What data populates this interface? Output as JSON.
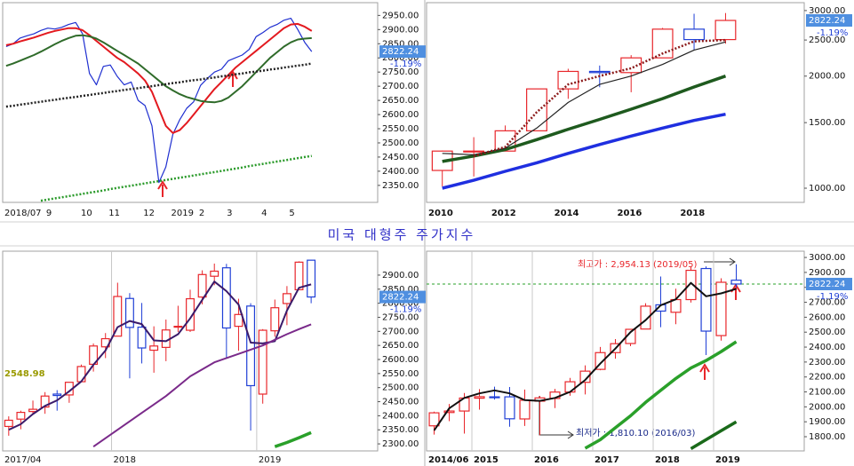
{
  "title": "미국 대형주 주가지수",
  "chart_data": [
    {
      "type": "line",
      "ylim": [
        2290,
        2995
      ],
      "yticks": [
        {
          "value": 2350,
          "label": "2350.00"
        },
        {
          "value": 2400,
          "label": "2400.00"
        },
        {
          "value": 2450,
          "label": "2450.00"
        },
        {
          "value": 2500,
          "label": "2500.00"
        },
        {
          "value": 2550,
          "label": "2550.00"
        },
        {
          "value": 2600,
          "label": "2600.00"
        },
        {
          "value": 2650,
          "label": "2650.00"
        },
        {
          "value": 2700,
          "label": "2700.00"
        },
        {
          "value": 2750,
          "label": "2750.00"
        },
        {
          "value": 2800,
          "label": "2800.00"
        },
        {
          "value": 2850,
          "label": "2850.00"
        },
        {
          "value": 2900,
          "label": "2900.00"
        },
        {
          "value": 2950,
          "label": "2950.00"
        }
      ],
      "categories": [
        "2018/07",
        null,
        null,
        null,
        null,
        null,
        "9",
        null,
        null,
        null,
        null,
        "10",
        null,
        null,
        null,
        "11",
        null,
        null,
        null,
        null,
        "12",
        null,
        null,
        null,
        "2019",
        null,
        null,
        null,
        "2",
        null,
        null,
        null,
        "3",
        null,
        null,
        null,
        null,
        "4",
        null,
        null,
        null,
        "5",
        null,
        null,
        null
      ],
      "grid": false,
      "series": [
        {
          "color": "#1f2fd0",
          "style": "thin",
          "values": [
            2840,
            2850,
            2870,
            2878,
            2885,
            2897,
            2905,
            2902,
            2908,
            2918,
            2925,
            2885,
            2745,
            2705,
            2770,
            2775,
            2735,
            2705,
            2715,
            2650,
            2632,
            2560,
            2360,
            2415,
            2530,
            2582,
            2622,
            2645,
            2703,
            2728,
            2750,
            2760,
            2790,
            2800,
            2810,
            2830,
            2875,
            2890,
            2908,
            2918,
            2933,
            2940,
            2900,
            2855,
            2822.24
          ]
        },
        {
          "color": "#e3191f",
          "style": "medium",
          "values": [
            2845,
            2850,
            2858,
            2865,
            2872,
            2880,
            2888,
            2895,
            2900,
            2905,
            2905,
            2898,
            2880,
            2860,
            2840,
            2820,
            2800,
            2785,
            2765,
            2745,
            2720,
            2680,
            2620,
            2560,
            2535,
            2545,
            2570,
            2600,
            2630,
            2660,
            2690,
            2715,
            2740,
            2765,
            2785,
            2805,
            2825,
            2845,
            2865,
            2885,
            2905,
            2918,
            2920,
            2910,
            2895
          ]
        },
        {
          "color": "#2f6b2a",
          "style": "medium",
          "values": [
            2772,
            2780,
            2790,
            2800,
            2810,
            2822,
            2835,
            2848,
            2860,
            2870,
            2878,
            2880,
            2876,
            2868,
            2855,
            2840,
            2825,
            2810,
            2795,
            2780,
            2760,
            2740,
            2720,
            2700,
            2685,
            2672,
            2662,
            2655,
            2648,
            2645,
            2643,
            2648,
            2660,
            2680,
            2700,
            2725,
            2750,
            2775,
            2800,
            2820,
            2840,
            2855,
            2865,
            2868,
            2870
          ]
        },
        {
          "color": "#222222",
          "style": "dotted",
          "values": [
            2628,
            2631,
            2635,
            2638,
            2642,
            2645,
            2649,
            2652,
            2656,
            2659,
            2662,
            2666,
            2669,
            2673,
            2676,
            2680,
            2683,
            2687,
            2690,
            2693,
            2697,
            2700,
            2704,
            2707,
            2711,
            2714,
            2718,
            2721,
            2724,
            2728,
            2731,
            2735,
            2738,
            2742,
            2745,
            2749,
            2752,
            2755,
            2759,
            2762,
            2766,
            2769,
            2773,
            2776,
            2780
          ]
        },
        {
          "color": "#2a9a2a",
          "style": "dotted",
          "values": [
            null,
            null,
            null,
            null,
            null,
            2296,
            2300,
            2304,
            2308,
            2312,
            2316,
            2320,
            2324,
            2328,
            2332,
            2337,
            2341,
            2345,
            2349,
            2353,
            2357,
            2361,
            2365,
            2369,
            2373,
            2377,
            2381,
            2385,
            2389,
            2393,
            2397,
            2401,
            2405,
            2409,
            2413,
            2418,
            2422,
            2426,
            2430,
            2434,
            2438,
            2442,
            2446,
            2450,
            2454
          ]
        }
      ],
      "last_price": 2822.24,
      "change_label": "-1.19%"
    },
    {
      "type": "candlestick",
      "log_scale": true,
      "ylim": [
        916,
        3150
      ],
      "yticks": [
        {
          "value": 1000,
          "label": "1000.00"
        },
        {
          "value": 1500,
          "label": "1500.00"
        },
        {
          "value": 2000,
          "label": "2000.00"
        },
        {
          "value": 2500,
          "label": "2500.00"
        },
        {
          "value": 3000,
          "label": "3000.00"
        }
      ],
      "categories": [
        "2010",
        null,
        "2012",
        null,
        "2014",
        null,
        "2016",
        null,
        "2018",
        null
      ],
      "grid": false,
      "up_color": "#e8262b",
      "down_color": "#1f3fd6",
      "candles": {
        "open": [
          1116,
          1258,
          1258,
          1426,
          1848,
          2059,
          2044,
          2239,
          2674,
          2507
        ],
        "high": [
          1262,
          1371,
          1474,
          1849,
          2093,
          2135,
          2277,
          2695,
          2941,
          2954.13
        ],
        "low": [
          1011,
          1075,
          1259,
          1426,
          1738,
          1867,
          1810.1,
          2239,
          2347,
          2444
        ],
        "close": [
          1258,
          1258,
          1426,
          1848,
          2059,
          2044,
          2239,
          2674,
          2507,
          2822.24
        ]
      },
      "series": [
        {
          "color": "#1e5a1e",
          "style": "thick",
          "values": [
            1180,
            1220,
            1270,
            1350,
            1440,
            1530,
            1630,
            1740,
            1870,
            2000
          ]
        },
        {
          "color": "#1f2fe0",
          "style": "thick",
          "values": [
            1000,
            1050,
            1110,
            1170,
            1240,
            1310,
            1380,
            1450,
            1520,
            1580
          ]
        },
        {
          "color": "#222222",
          "style": "thin",
          "values": [
            1240,
            1230,
            1280,
            1450,
            1700,
            1900,
            2000,
            2150,
            2350,
            2470
          ]
        },
        {
          "color": "#8b1a1a",
          "style": "dotted",
          "values": [
            null,
            1220,
            1290,
            1600,
            1900,
            2000,
            2100,
            2300,
            2480,
            2500
          ]
        }
      ],
      "last_price": 2822.24,
      "change_label": "-1.19%"
    },
    {
      "type": "candlestick",
      "ylim": [
        2275,
        2985
      ],
      "yticks": [
        {
          "value": 2300,
          "label": "2300.00"
        },
        {
          "value": 2350,
          "label": "2350.00"
        },
        {
          "value": 2400,
          "label": "2400.00"
        },
        {
          "value": 2450,
          "label": "2450.00"
        },
        {
          "value": 2500,
          "label": "2500.00"
        },
        {
          "value": 2550,
          "label": "2550.00"
        },
        {
          "value": 2600,
          "label": "2600.00"
        },
        {
          "value": 2650,
          "label": "2650.00"
        },
        {
          "value": 2700,
          "label": "2700.00"
        },
        {
          "value": 2750,
          "label": "2750.00"
        },
        {
          "value": 2800,
          "label": "2800.00"
        },
        {
          "value": 2850,
          "label": "2850.00"
        },
        {
          "value": 2900,
          "label": "2900.00"
        }
      ],
      "categories": [
        "2017/04",
        null,
        null,
        null,
        null,
        null,
        null,
        null,
        null,
        "2018",
        null,
        null,
        null,
        null,
        null,
        null,
        null,
        null,
        null,
        null,
        null,
        "2019",
        null,
        null,
        null,
        null
      ],
      "grid": true,
      "up_color": "#e8262b",
      "down_color": "#1f3fd6",
      "candles": {
        "open": [
          2362,
          2388,
          2415,
          2431,
          2477,
          2474,
          2521,
          2583,
          2645,
          2683,
          2817,
          2715,
          2633,
          2643,
          2718,
          2704,
          2822,
          2896,
          2926,
          2718,
          2790,
          2477,
          2702,
          2799,
          2848,
          2953
        ],
        "high": [
          2398,
          2418,
          2454,
          2484,
          2491,
          2519,
          2582,
          2657,
          2694,
          2873,
          2836,
          2801,
          2718,
          2742,
          2791,
          2848,
          2917,
          2941,
          2940,
          2816,
          2800,
          2708,
          2813,
          2861,
          2949,
          2954
        ],
        "low": [
          2329,
          2352,
          2405,
          2407,
          2418,
          2446,
          2520,
          2557,
          2605,
          2682,
          2533,
          2586,
          2553,
          2594,
          2698,
          2698,
          2796,
          2864,
          2603,
          2631,
          2347,
          2443,
          2681,
          2722,
          2848,
          2800
        ],
        "close": [
          2384,
          2412,
          2423,
          2470,
          2472,
          2519,
          2575,
          2648,
          2674,
          2824,
          2714,
          2641,
          2648,
          2705,
          2718,
          2816,
          2902,
          2914,
          2712,
          2760,
          2507,
          2704,
          2784,
          2834,
          2946,
          2822.24
        ]
      },
      "series": [
        {
          "color": "#3a1a6a",
          "style": "medium",
          "values": [
            2350,
            2370,
            2406,
            2435,
            2455,
            2487,
            2522,
            2581,
            2632,
            2715,
            2737,
            2726,
            2668,
            2665,
            2690,
            2746,
            2812,
            2877,
            2843,
            2795,
            2660,
            2657,
            2665,
            2774,
            2855,
            2867
          ]
        },
        {
          "color": "#7a2a8a",
          "style": "medium",
          "values": [
            null,
            null,
            null,
            null,
            null,
            null,
            null,
            2290,
            2320,
            2350,
            2380,
            2410,
            2440,
            2470,
            2505,
            2540,
            2565,
            2590,
            2605,
            2620,
            2635,
            2650,
            2670,
            2690,
            2708,
            2725
          ]
        },
        {
          "color": "#2aa02a",
          "style": "thick",
          "values": [
            null,
            null,
            null,
            null,
            null,
            null,
            null,
            null,
            null,
            null,
            null,
            null,
            null,
            null,
            null,
            null,
            null,
            null,
            null,
            null,
            null,
            null,
            2290,
            2305,
            2322,
            2340
          ]
        }
      ],
      "level_label": 2548.98,
      "last_price": 2822.24,
      "change_label": "-1.19%"
    },
    {
      "type": "candlestick",
      "ylim": [
        1705,
        3042
      ],
      "yticks": [
        {
          "value": 1800,
          "label": "1800.00"
        },
        {
          "value": 1900,
          "label": "1900.00"
        },
        {
          "value": 2000,
          "label": "2000.00"
        },
        {
          "value": 2100,
          "label": "2100.00"
        },
        {
          "value": 2200,
          "label": "2200.00"
        },
        {
          "value": 2300,
          "label": "2300.00"
        },
        {
          "value": 2400,
          "label": "2400.00"
        },
        {
          "value": 2500,
          "label": "2500.00"
        },
        {
          "value": 2600,
          "label": "2600.00"
        },
        {
          "value": 2700,
          "label": "2700.00"
        },
        {
          "value": 2800,
          "label": "2800.00"
        },
        {
          "value": 2900,
          "label": "2900.00"
        },
        {
          "value": 3000,
          "label": "3000.00"
        }
      ],
      "categories": [
        "2014/06",
        null,
        null,
        "2015",
        null,
        null,
        null,
        "2016",
        null,
        null,
        null,
        "2017",
        null,
        null,
        null,
        "2018",
        null,
        null,
        null,
        "2019",
        null
      ],
      "grid": true,
      "price_line": true,
      "up_color": "#e8262b",
      "down_color": "#1f3fd6",
      "candles": {
        "open": [
          1873,
          1962,
          1972,
          2058,
          2067,
          2067,
          1919,
          2038,
          2056,
          2099,
          2164,
          2251,
          2363,
          2424,
          2521,
          2683,
          2633,
          2718,
          2926,
          2477,
          2848
        ],
        "high": [
          1968,
          2019,
          2093,
          2119,
          2135,
          2133,
          2116,
          2073,
          2120,
          2194,
          2278,
          2401,
          2454,
          2519,
          2694,
          2873,
          2791,
          2941,
          2940,
          2861,
          2954.13
        ],
        "low": [
          1814,
          1904,
          1821,
          1981,
          2049,
          1867,
          1872,
          1810.1,
          1992,
          2074,
          2083,
          2245,
          2322,
          2406,
          2520,
          2533,
          2553,
          2698,
          2347,
          2443,
          2800
        ],
        "close": [
          1960,
          1972,
          2059,
          2068,
          2063,
          1920,
          2044,
          2060,
          2099,
          2168,
          2239,
          2363,
          2423,
          2519,
          2674,
          2641,
          2718,
          2914,
          2507,
          2834,
          2822.24
        ]
      },
      "series": [
        {
          "color": "#111111",
          "style": "medium",
          "values": [
            1842,
            1990,
            2060,
            2090,
            2110,
            2090,
            2045,
            2040,
            2060,
            2100,
            2180,
            2290,
            2390,
            2500,
            2580,
            2680,
            2720,
            2830,
            2740,
            2760,
            2790
          ]
        },
        {
          "color": "#2aa02a",
          "style": "thick",
          "values": [
            null,
            null,
            null,
            null,
            null,
            null,
            null,
            null,
            null,
            null,
            1723,
            1780,
            1860,
            1940,
            2030,
            2110,
            2190,
            2260,
            2310,
            2370,
            2436
          ]
        },
        {
          "color": "#1a6a1a",
          "style": "thick",
          "values": [
            null,
            null,
            null,
            null,
            null,
            null,
            null,
            null,
            null,
            null,
            null,
            null,
            null,
            null,
            null,
            null,
            null,
            1720,
            1780,
            1840,
            1900
          ]
        }
      ],
      "high_note": "최고가 : 2,954.13 (2019/05)",
      "low_note": "최저가 : 1,810.10 (2016/03)",
      "last_price": 2822.24,
      "change_label": "-1.19%"
    }
  ]
}
